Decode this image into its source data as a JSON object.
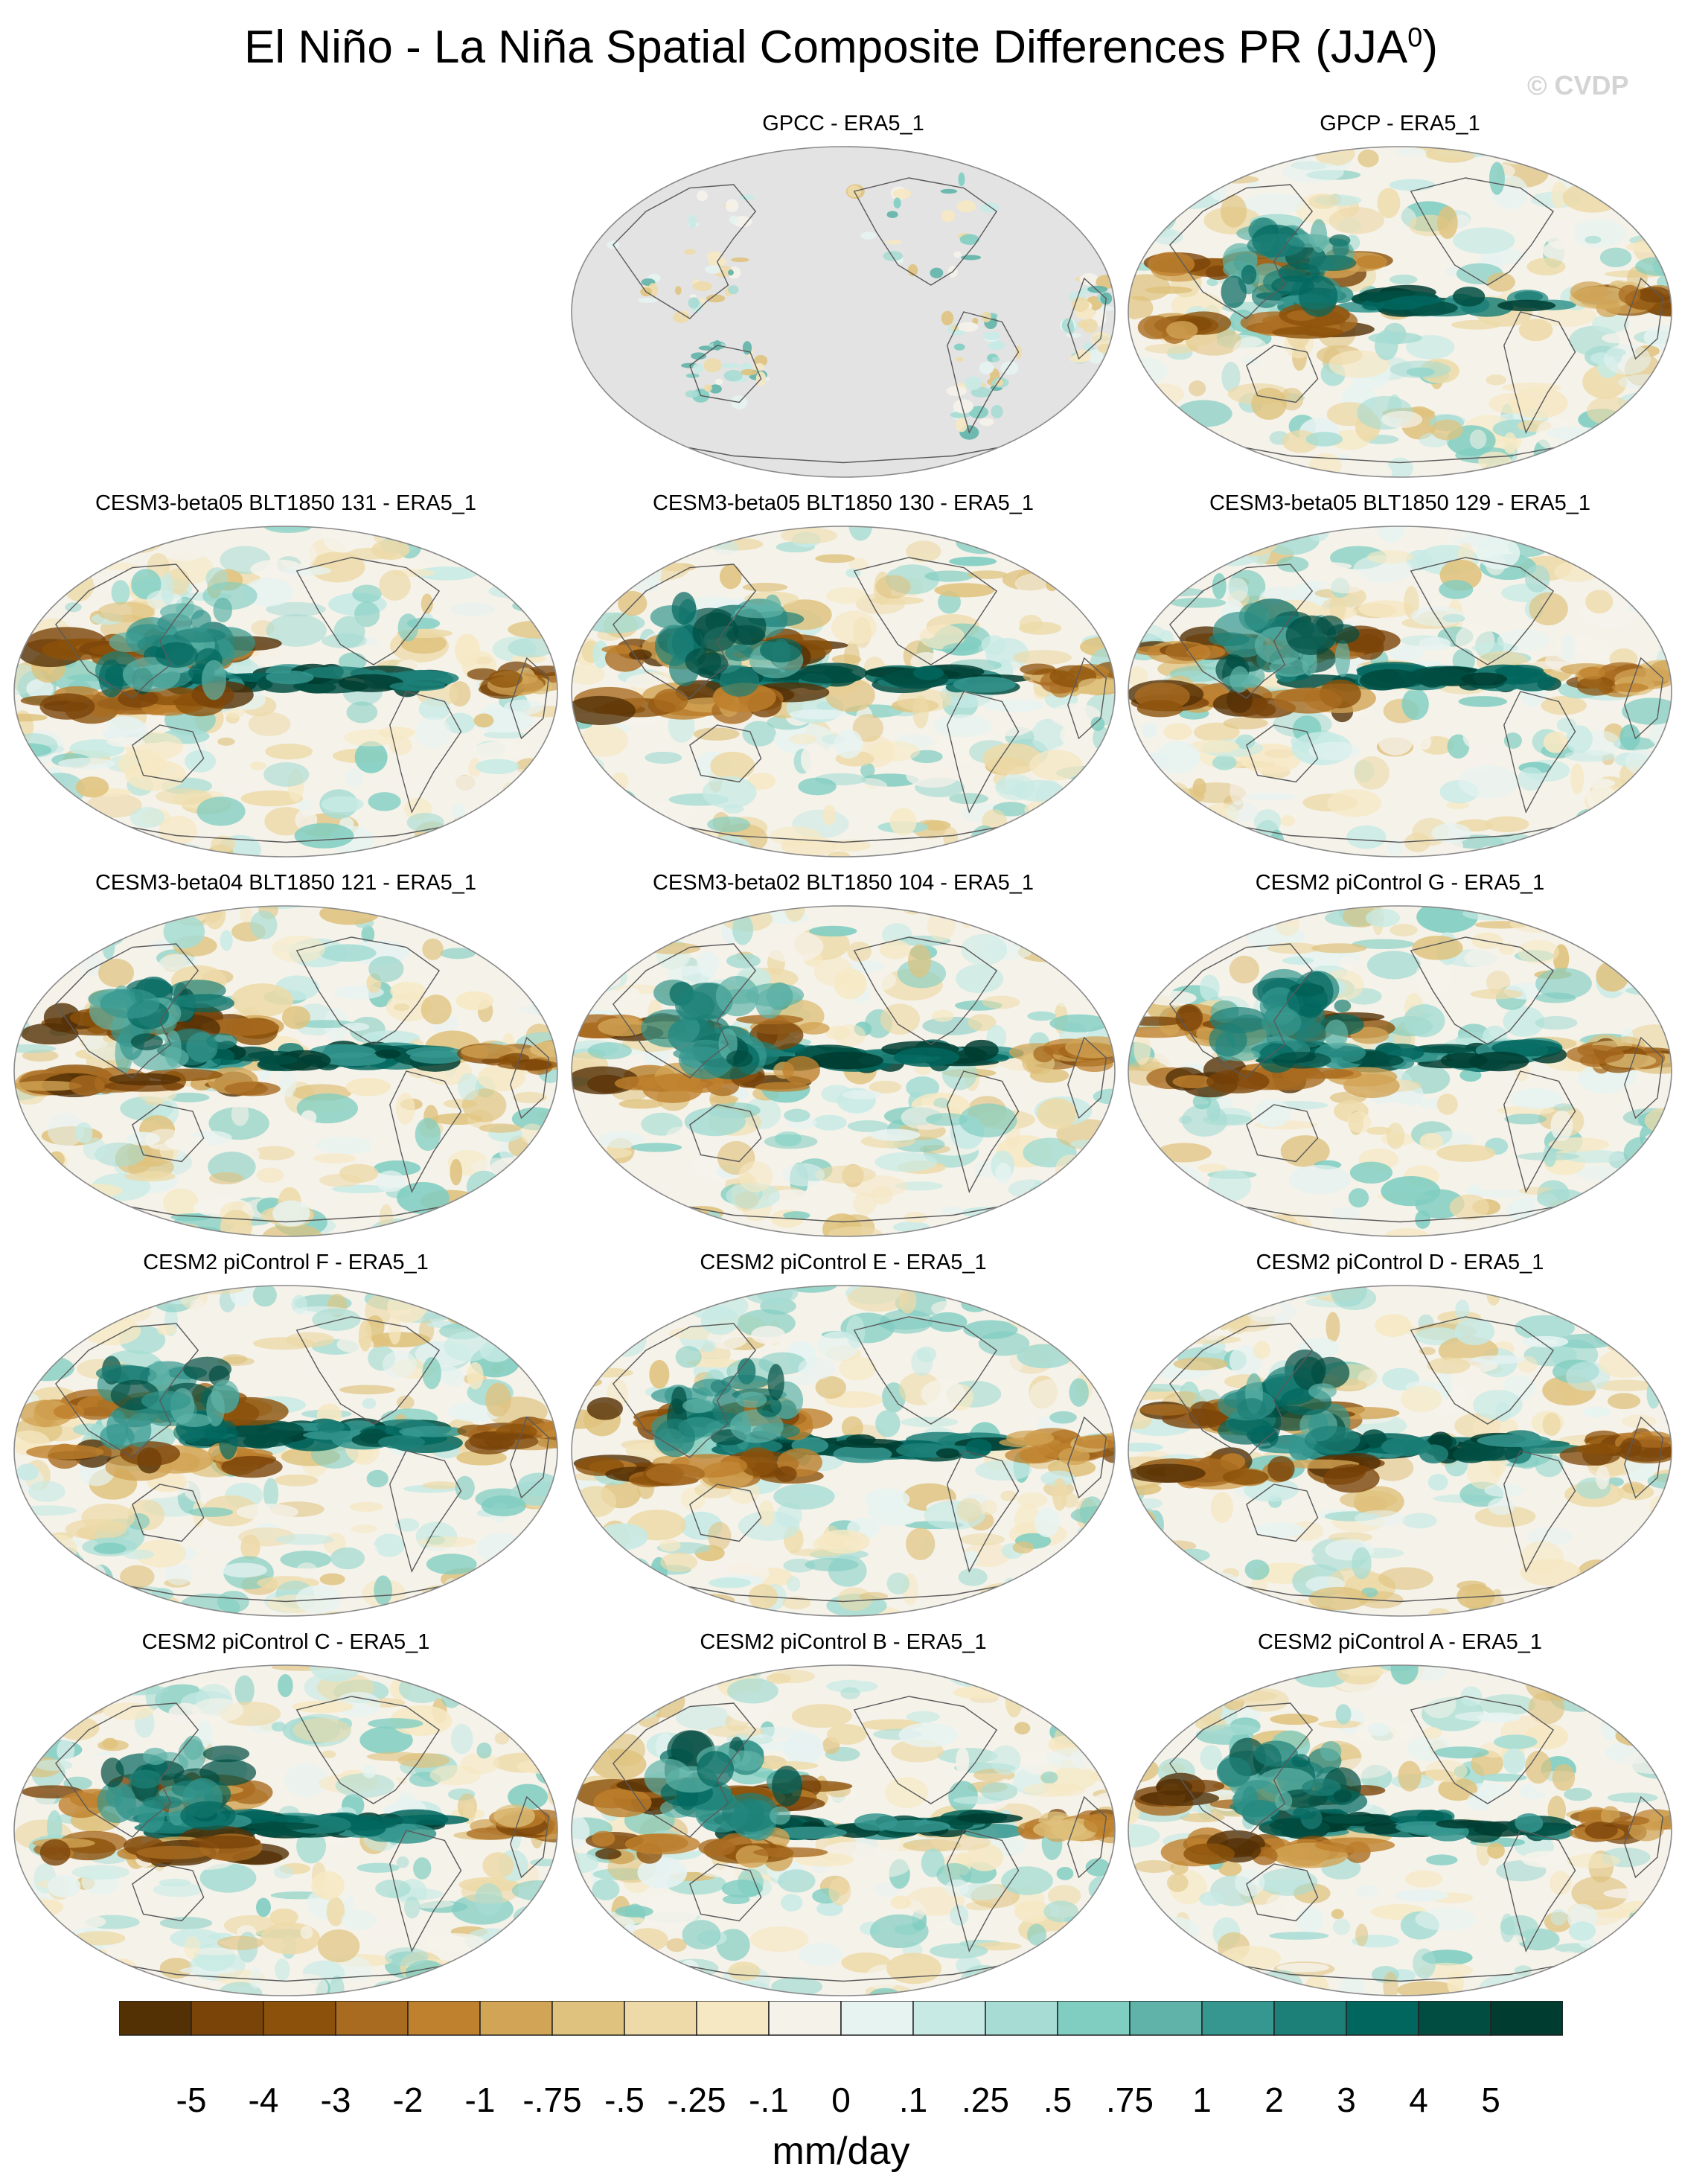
{
  "figure": {
    "title_main": "El Niño - La Niña Spatial Composite Differences PR (JJA",
    "title_superscript": "0",
    "title_close": ")",
    "copyright": "© CVDP",
    "units": "mm/day"
  },
  "panels": [
    {
      "title": "GPCC - ERA5_1",
      "kind": "gpcc"
    },
    {
      "title": "GPCP - ERA5_1",
      "kind": "field"
    },
    {
      "title": "CESM3-beta05 BLT1850 131 - ERA5_1",
      "kind": "field"
    },
    {
      "title": "CESM3-beta05 BLT1850 130 - ERA5_1",
      "kind": "field"
    },
    {
      "title": "CESM3-beta05 BLT1850 129 - ERA5_1",
      "kind": "field"
    },
    {
      "title": "CESM3-beta04 BLT1850 121 - ERA5_1",
      "kind": "field"
    },
    {
      "title": "CESM3-beta02 BLT1850 104 - ERA5_1",
      "kind": "field"
    },
    {
      "title": "CESM2 piControl G - ERA5_1",
      "kind": "field"
    },
    {
      "title": "CESM2 piControl F - ERA5_1",
      "kind": "field"
    },
    {
      "title": "CESM2 piControl E - ERA5_1",
      "kind": "field"
    },
    {
      "title": "CESM2 piControl D - ERA5_1",
      "kind": "field"
    },
    {
      "title": "CESM2 piControl C - ERA5_1",
      "kind": "field"
    },
    {
      "title": "CESM2 piControl B - ERA5_1",
      "kind": "field"
    },
    {
      "title": "CESM2 piControl A - ERA5_1",
      "kind": "field"
    }
  ],
  "colorbar": {
    "colors": [
      "#543005",
      "#7a4409",
      "#8c510a",
      "#a96b20",
      "#bf812d",
      "#d2a455",
      "#dfc27d",
      "#eddaa8",
      "#f6e8c3",
      "#f5f2ea",
      "#e6f3f1",
      "#c7eae5",
      "#a6dcd3",
      "#80cdc1",
      "#5fb3a8",
      "#35978f",
      "#1d8078",
      "#01665e",
      "#014d42",
      "#003c30"
    ],
    "labels": [
      "-5",
      "-4",
      "-3",
      "-2",
      "-1",
      "-.75",
      "-.5",
      "-.25",
      "-.1",
      "0",
      ".1",
      ".25",
      ".5",
      ".75",
      "1",
      "2",
      "3",
      "4",
      "5"
    ]
  },
  "chart_data": {
    "type": "heatmap",
    "title": "El Niño - La Niña Spatial Composite Differences PR (JJA0)",
    "units": "mm/day",
    "color_levels": [
      -5,
      -4,
      -3,
      -2,
      -1,
      -0.75,
      -0.5,
      -0.25,
      -0.1,
      0,
      0.1,
      0.25,
      0.5,
      0.75,
      1,
      2,
      3,
      4,
      5
    ],
    "projection": "Robinson, Pacific-centered",
    "panels": [
      "GPCC - ERA5_1",
      "GPCP - ERA5_1",
      "CESM3-beta05 BLT1850 131 - ERA5_1",
      "CESM3-beta05 BLT1850 130 - ERA5_1",
      "CESM3-beta05 BLT1850 129 - ERA5_1",
      "CESM3-beta04 BLT1850 121 - ERA5_1",
      "CESM3-beta02 BLT1850 104 - ERA5_1",
      "CESM2 piControl G - ERA5_1",
      "CESM2 piControl F - ERA5_1",
      "CESM2 piControl E - ERA5_1",
      "CESM2 piControl D - ERA5_1",
      "CESM2 piControl C - ERA5_1",
      "CESM2 piControl B - ERA5_1",
      "CESM2 piControl A - ERA5_1"
    ]
  }
}
